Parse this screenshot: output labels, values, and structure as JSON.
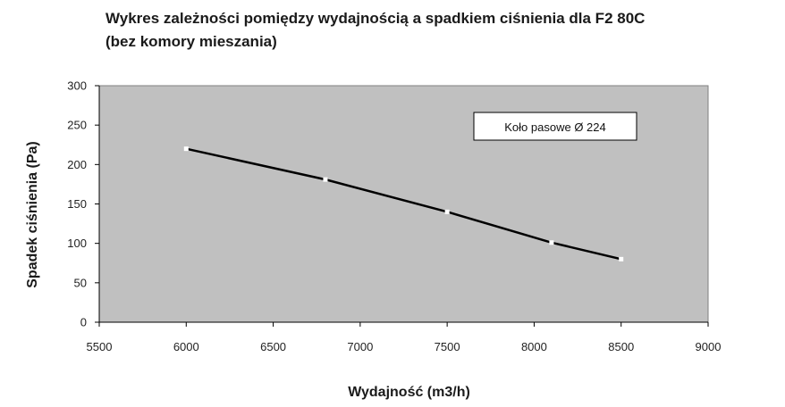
{
  "chart_data": {
    "type": "line",
    "title_line1": "Wykres zależności pomiędzy wydajnością a spadkiem ciśnienia dla F2 80C",
    "title_line2": "(bez komory mieszania)",
    "xlabel": "Wydajność (m3/h)",
    "ylabel": "Spadek ciśnienia (Pa)",
    "xlim": [
      5500,
      9000
    ],
    "ylim": [
      0,
      300
    ],
    "xticks": [
      5500,
      6000,
      6500,
      7000,
      7500,
      8000,
      8500,
      9000
    ],
    "yticks": [
      0,
      50,
      100,
      150,
      200,
      250,
      300
    ],
    "grid": false,
    "legend": "top-right",
    "background": "#c0c0c0",
    "line_color": "#000000",
    "marker_color": "#ffffff",
    "series": [
      {
        "name": "Koło pasowe Ø 224",
        "x": [
          6000,
          6800,
          7500,
          8100,
          8500
        ],
        "y": [
          220,
          181,
          140,
          101,
          80
        ]
      }
    ]
  }
}
